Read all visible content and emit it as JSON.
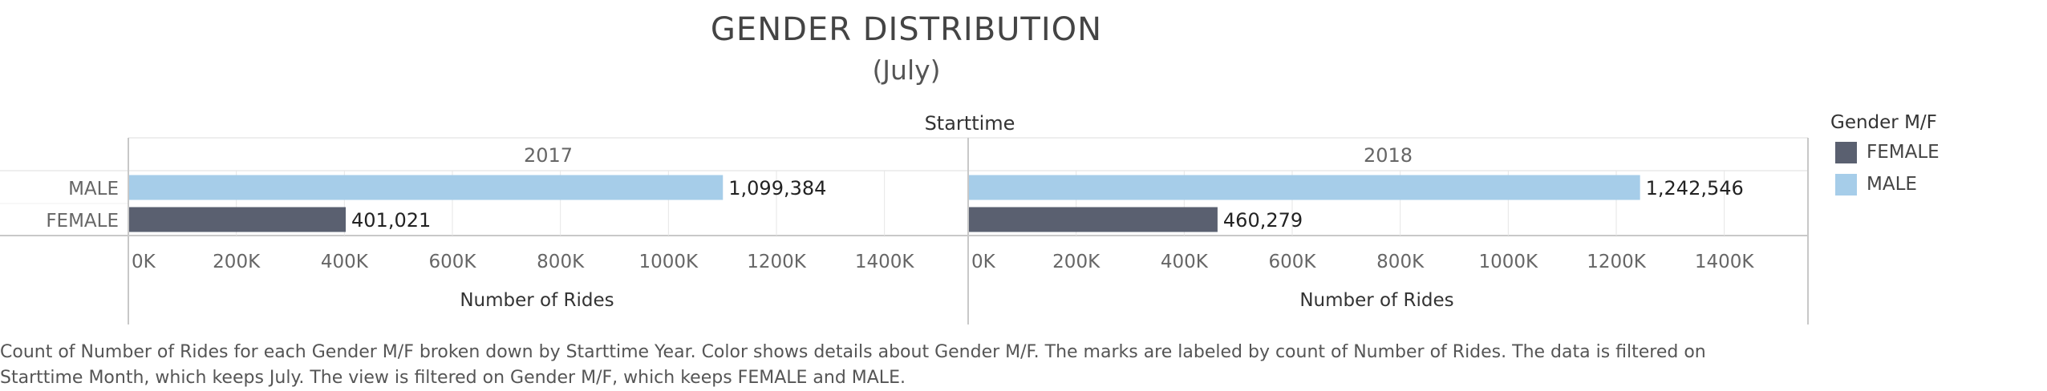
{
  "title": "GENDER DISTRIBUTION",
  "subtitle": "(July)",
  "column_header": "Starttime",
  "legend": {
    "title": "Gender M/F",
    "items": [
      {
        "label": "FEMALE",
        "color": "#5a6070"
      },
      {
        "label": "MALE",
        "color": "#a6cde9"
      }
    ]
  },
  "caption": "Count of Number of Rides for each Gender M/F broken down by Starttime Year.  Color shows details about Gender M/F.  The marks are labeled by count of Number of Rides. The data is filtered on Starttime Month, which keeps July. The view is filtered on Gender M/F, which keeps FEMALE and MALE.",
  "chart_data": {
    "type": "bar",
    "orientation": "horizontal",
    "categories": [
      "MALE",
      "FEMALE"
    ],
    "panels": [
      {
        "name": "2017",
        "values": [
          1099384,
          401021
        ],
        "labels": [
          "1,099,384",
          "401,021"
        ]
      },
      {
        "name": "2018",
        "values": [
          1242546,
          460279
        ],
        "labels": [
          "1,242,546",
          "460,279"
        ]
      }
    ],
    "colors": {
      "MALE": "#a6cde9",
      "FEMALE": "#5a6070"
    },
    "xlabel": "Number of Rides",
    "xlim": [
      0,
      1500000
    ],
    "xticks": [
      0,
      200000,
      400000,
      600000,
      800000,
      1000000,
      1200000,
      1400000
    ],
    "xtick_labels": [
      "0K",
      "200K",
      "400K",
      "600K",
      "800K",
      "1000K",
      "1200K",
      "1400K"
    ],
    "grid": true,
    "legend_position": "right"
  }
}
